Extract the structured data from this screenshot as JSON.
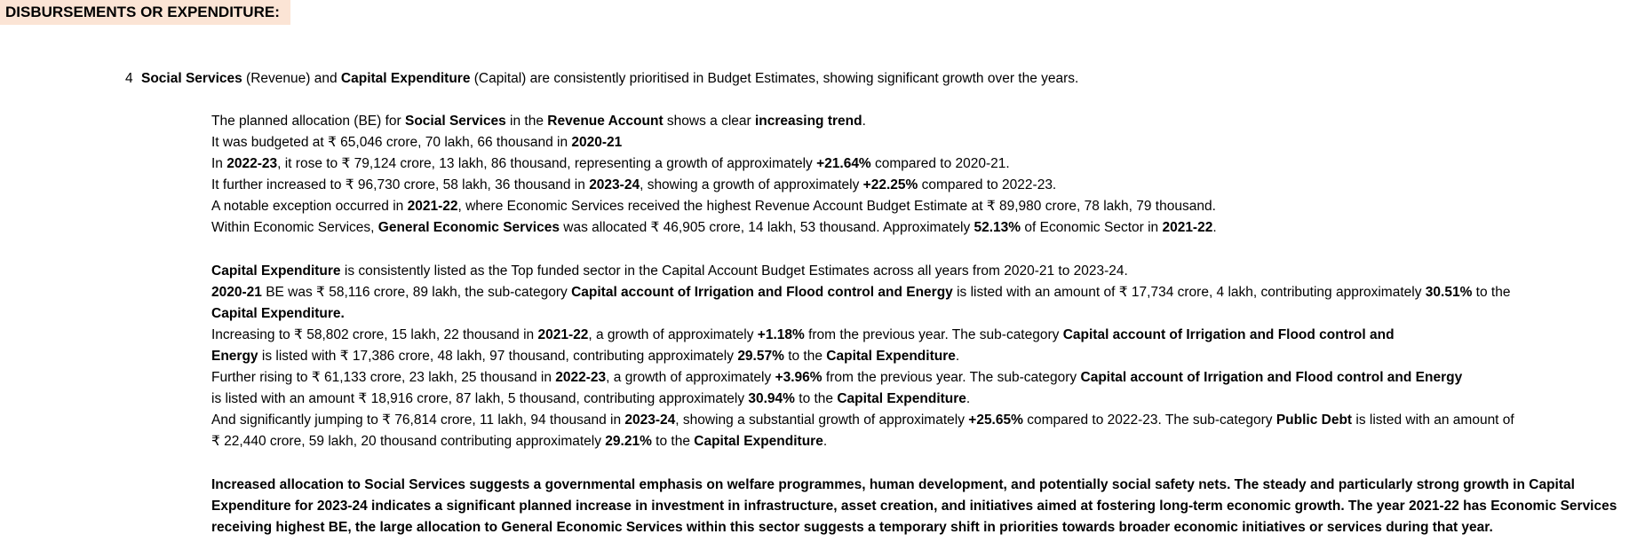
{
  "header": "DISBURSEMENTS OR EXPENDITURE:",
  "point": {
    "number": "4",
    "b1": "Social Services",
    "t1": " (Revenue) and ",
    "b2": "Capital Expenditure",
    "t2": " (Capital) are consistently prioritised in Budget Estimates, showing significant growth over the years."
  },
  "revenue": {
    "l1": {
      "t1": "The planned allocation (BE) for ",
      "b1": "Social Services",
      "t2": " in the ",
      "b2": "Revenue Account",
      "t3": " shows a clear ",
      "b3": "increasing trend",
      "t4": "."
    },
    "l2": {
      "t1": "It was budgeted at ₹ 65,046 crore, 70 lakh, 66 thousand in ",
      "b1": "2020-21"
    },
    "l3": {
      "t1": "In ",
      "b1": "2022-23",
      "t2": ", it rose to ₹ 79,124 crore, 13 lakh, 86 thousand, representing a growth of approximately ",
      "b2": "+21.64%",
      "t3": " compared to 2020-21."
    },
    "l4": {
      "t1": "It further increased to ₹ 96,730 crore, 58 lakh, 36 thousand in ",
      "b1": "2023-24",
      "t2": ", showing a growth of approximately ",
      "b2": "+22.25%",
      "t3": " compared to 2022-23."
    },
    "l5": {
      "t1": "A notable exception occurred in ",
      "b1": "2021-22",
      "t2": ", where Economic Services received the highest Revenue Account Budget Estimate at ₹ 89,980 crore, 78 lakh, 79 thousand."
    },
    "l6": {
      "t1": "Within Economic Services, ",
      "b1": "General Economic Services",
      "t2": " was allocated ₹ 46,905 crore, 14 lakh, 53 thousand. Approximately ",
      "b2": "52.13%",
      "t3": " of Economic Sector in ",
      "b3": "2021-22",
      "t4": "."
    }
  },
  "capital": {
    "l1": {
      "b1": "Capital Expenditure",
      "t1": " is consistently listed as the Top funded sector in the Capital Account Budget Estimates across all years from 2020-21 to 2023-24."
    },
    "l2": {
      "b1": "2020-21",
      "t1": " BE was ₹ 58,116 crore, 89 lakh, the sub-category ",
      "b2": "Capital account of Irrigation and Flood control and Energy",
      "t2": " is listed with an amount of ₹ 17,734 crore, 4 lakh, contributing approximately ",
      "b3": "30.51%",
      "t3": " to the"
    },
    "l3": {
      "b1": "Capital Expenditure."
    },
    "l4": {
      "t1": "Increasing to ₹ 58,802 crore, 15 lakh, 22 thousand in ",
      "b1": "2021-22",
      "t2": ", a growth of approximately ",
      "b2": "+1.18%",
      "t3": " from the previous year. The sub-category ",
      "b3": "Capital account of Irrigation and Flood control and"
    },
    "l5": {
      "b1": "Energy",
      "t1": " is listed with ₹ 17,386 crore, 48 lakh, 97 thousand, contributing approximately ",
      "b2": "29.57%",
      "t2": " to the ",
      "b3": "Capital Expenditure",
      "t3": "."
    },
    "l6": {
      "t1": "Further rising to ₹ 61,133 crore, 23 lakh, 25 thousand in ",
      "b1": "2022-23",
      "t2": ", a growth of approximately ",
      "b2": "+3.96%",
      "t3": " from the previous year. The sub-category ",
      "b3": "Capital account of Irrigation and Flood control and Energy"
    },
    "l7": {
      "t1": "is listed with an amount ₹ 18,916 crore, 87 lakh, 5 thousand, contributing approximately ",
      "b1": "30.94%",
      "t2": " to the ",
      "b2": "Capital Expenditure",
      "t3": "."
    },
    "l8": {
      "t1": "And significantly jumping to ₹ 76,814 crore, 11 lakh, 94 thousand in ",
      "b1": "2023-24",
      "t2": ", showing a substantial growth of approximately ",
      "b2": "+25.65%",
      "t3": " compared to 2022-23. The sub-category ",
      "b3": "Public Debt",
      "t4": " is listed with an amount of"
    },
    "l9": {
      "t1": "₹ 22,440 crore, 59 lakh, 20 thousand contributing approximately ",
      "b1": "29.21%",
      "t2": " to the ",
      "b2": "Capital Expenditure",
      "t3": "."
    }
  },
  "conclusion": {
    "l1": "Increased allocation to Social Services suggests a governmental emphasis on welfare programmes, human development, and potentially social safety nets. The steady and particularly strong growth in Capital",
    "l2": "Expenditure for 2023-24 indicates a significant planned increase in investment in infrastructure, asset creation, and initiatives aimed at fostering long-term economic growth. The year 2021-22 has Economic Services",
    "l3": "receiving highest BE, the large allocation to General Economic Services within this sector suggests a temporary shift in priorities towards broader economic initiatives or services during that year."
  }
}
